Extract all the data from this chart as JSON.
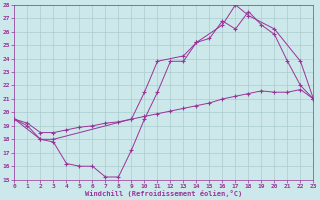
{
  "xlabel": "Windchill (Refroidissement éolien,°C)",
  "background_color": "#cce8ea",
  "grid_color": "#aaccce",
  "line_color": "#993399",
  "xmin": 0,
  "xmax": 23,
  "ymin": 15,
  "ymax": 28,
  "series": [
    {
      "x": [
        0,
        1,
        2,
        3,
        4,
        5,
        6,
        7,
        8,
        9,
        10,
        11,
        12,
        13,
        14,
        15,
        16,
        17,
        18,
        19,
        20,
        21,
        22,
        23
      ],
      "y": [
        19.5,
        19.0,
        18.0,
        17.8,
        16.2,
        16.0,
        16.0,
        15.2,
        15.2,
        17.2,
        19.5,
        21.5,
        23.8,
        23.8,
        25.2,
        25.5,
        26.8,
        26.2,
        27.5,
        26.5,
        25.8,
        23.8,
        22.0,
        21.0
      ]
    },
    {
      "x": [
        0,
        1,
        2,
        3,
        4,
        5,
        6,
        7,
        8,
        9,
        10,
        11,
        12,
        13,
        14,
        15,
        16,
        17,
        18,
        19,
        20,
        21,
        22,
        23
      ],
      "y": [
        19.5,
        19.2,
        18.5,
        18.5,
        18.7,
        18.9,
        19.0,
        19.2,
        19.3,
        19.5,
        19.7,
        19.9,
        20.1,
        20.3,
        20.5,
        20.7,
        21.0,
        21.2,
        21.4,
        21.6,
        21.5,
        21.5,
        21.7,
        21.0
      ]
    },
    {
      "x": [
        0,
        2,
        3,
        9,
        10,
        11,
        13,
        14,
        16,
        17,
        18,
        20,
        22,
        23
      ],
      "y": [
        19.5,
        18.0,
        18.0,
        19.5,
        21.5,
        23.8,
        24.2,
        25.2,
        26.5,
        28.0,
        27.2,
        26.2,
        23.8,
        21.0
      ]
    }
  ],
  "yticks": [
    15,
    16,
    17,
    18,
    19,
    20,
    21,
    22,
    23,
    24,
    25,
    26,
    27,
    28
  ],
  "xticks": [
    0,
    1,
    2,
    3,
    4,
    5,
    6,
    7,
    8,
    9,
    10,
    11,
    12,
    13,
    14,
    15,
    16,
    17,
    18,
    19,
    20,
    21,
    22,
    23
  ]
}
